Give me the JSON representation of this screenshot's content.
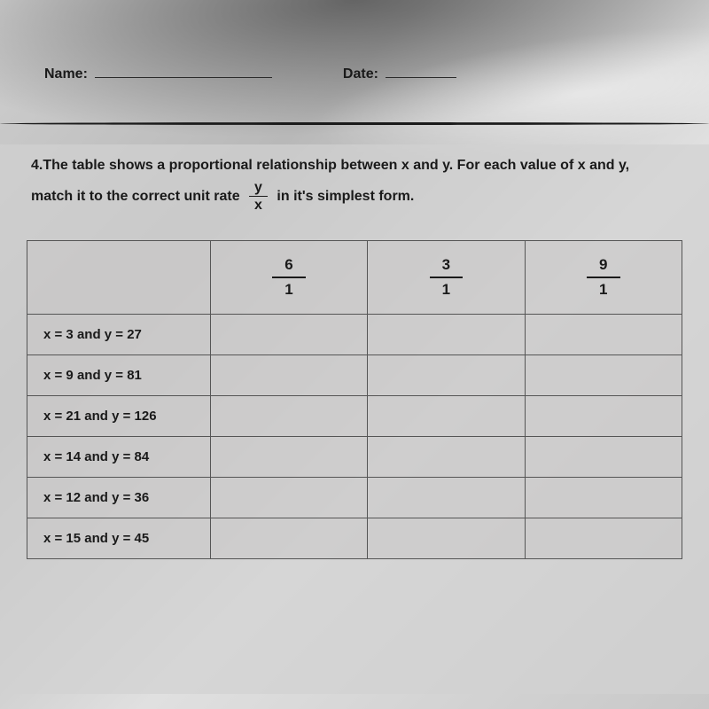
{
  "header": {
    "name_label": "Name:",
    "date_label": "Date:"
  },
  "question": {
    "number": "4.",
    "text_part1": "The table shows a proportional relationship between x and y. For each value of x and y,",
    "text_part2": "match it to the correct unit rate",
    "text_part3": "in it's simplest form.",
    "fraction_num": "y",
    "fraction_den": "x"
  },
  "table": {
    "column_headers": [
      {
        "num": "6",
        "den": "1"
      },
      {
        "num": "3",
        "den": "1"
      },
      {
        "num": "9",
        "den": "1"
      }
    ],
    "rows": [
      {
        "label": "x = 3 and y = 27"
      },
      {
        "label": "x = 9 and y = 81"
      },
      {
        "label": "x = 21 and y = 126"
      },
      {
        "label": "x = 14 and y = 84"
      },
      {
        "label": "x = 12 and y = 36"
      },
      {
        "label": "x = 15 and y = 45"
      }
    ]
  },
  "styling": {
    "background_gradient_colors": [
      "#d0d0d0",
      "#b8b8b8",
      "#e0e0e0",
      "#c8c8c8"
    ],
    "text_color": "#1a1a1a",
    "border_color": "#555",
    "font_family": "Arial, sans-serif",
    "label_fontsize": 16,
    "table_fontsize": 15,
    "fraction_fontsize": 17
  }
}
